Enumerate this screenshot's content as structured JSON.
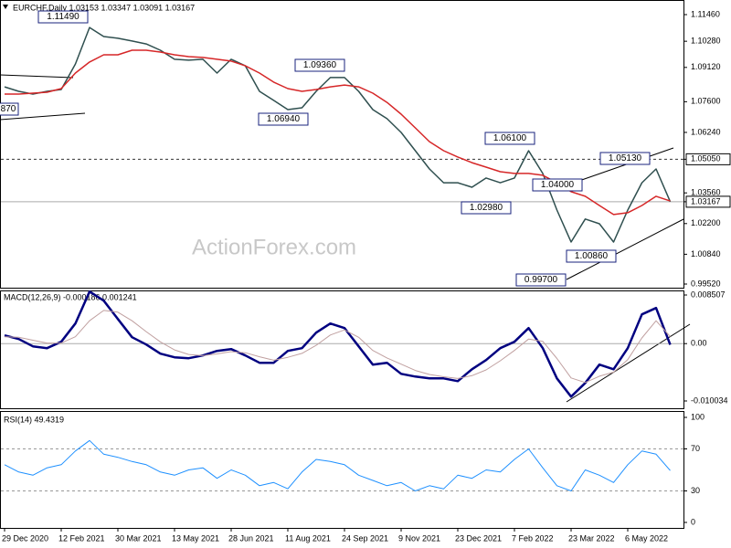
{
  "watermark": "ActionForex.com",
  "chart_data": [
    {
      "type": "line",
      "title": "EURCHF,Daily  1.03153 1.03347 1.03091 1.03167",
      "ylim": [
        0.9952,
        1.1146
      ],
      "yticks": [
        {
          "value": 1.1146,
          "label": "1.11460"
        },
        {
          "value": 1.1028,
          "label": "1.10280"
        },
        {
          "value": 1.0912,
          "label": "1.09120"
        },
        {
          "value": 1.076,
          "label": "1.07600"
        },
        {
          "value": 1.0624,
          "label": "1.06240"
        },
        {
          "value": 1.0505,
          "label": "1.05050",
          "line": "dashed",
          "boxed": true
        },
        {
          "value": 1.0356,
          "label": "1.03560"
        },
        {
          "value": 1.03167,
          "label": "1.03167",
          "line": "solid",
          "boxed": true
        },
        {
          "value": 1.022,
          "label": "1.02200"
        },
        {
          "value": 1.0084,
          "label": "1.00840"
        },
        {
          "value": 0.9952,
          "label": "0.99520"
        }
      ],
      "annotations": [
        "1.11490",
        "870",
        "1.09360",
        "1.06940",
        "1.06100",
        "1.05130",
        "1.04000",
        "1.02980",
        "1.00860",
        "0.99700"
      ],
      "series": [
        {
          "color": "#2f4f4f",
          "values": [
            1.0826,
            1.0806,
            1.0794,
            1.0806,
            1.0814,
            1.0927,
            1.1089,
            1.1049,
            1.1041,
            1.1029,
            1.1016,
            1.0988,
            1.0948,
            1.0944,
            1.0948,
            1.0887,
            1.0948,
            1.0919,
            1.0806,
            1.0766,
            1.0725,
            1.0733,
            1.0806,
            1.0867,
            1.0867,
            1.0806,
            1.0725,
            1.0685,
            1.0624,
            1.0543,
            1.0462,
            1.0401,
            1.0401,
            1.0381,
            1.0422,
            1.0401,
            1.0422,
            1.0543,
            1.0442,
            1.028,
            1.0138,
            1.024,
            1.0219,
            1.0138,
            1.028,
            1.0401,
            1.0462,
            1.0317
          ]
        },
        {
          "color": "#d62728",
          "values": [
            1.0794,
            1.0794,
            1.0798,
            1.0802,
            1.0818,
            1.0887,
            1.0936,
            1.0968,
            1.0968,
            1.0988,
            1.0988,
            1.098,
            1.0968,
            1.096,
            1.0956,
            1.0948,
            1.094,
            1.0919,
            1.0887,
            1.0847,
            1.0818,
            1.0806,
            1.0814,
            1.0826,
            1.0834,
            1.0826,
            1.0798,
            1.0757,
            1.0705,
            1.0644,
            1.0583,
            1.0543,
            1.0515,
            1.049,
            1.047,
            1.045,
            1.0442,
            1.0442,
            1.0434,
            1.0401,
            1.0361,
            1.0341,
            1.03,
            1.026,
            1.0268,
            1.03,
            1.0341,
            1.032
          ]
        }
      ]
    },
    {
      "type": "line",
      "title": "MACD(12,26,9) -0.000186 0.001241",
      "ylim": [
        -0.010034,
        0.008507
      ],
      "yticks": [
        0.008507,
        {
          "value": 0,
          "label": "0.00",
          "line": "solid"
        },
        -0.010034
      ],
      "series": [
        {
          "color": "#000080",
          "width": 2.5,
          "values": [
            0.00144,
            0.0008,
            -0.00048,
            -0.0008,
            0.00032,
            0.00352,
            0.00912,
            0.00752,
            0.0043,
            0.00112,
            -0.00016,
            -0.00176,
            -0.0024,
            -0.00256,
            -0.00208,
            -0.00128,
            -0.00096,
            -0.00208,
            -0.00336,
            -0.00336,
            -0.00128,
            -0.0008,
            0.00192,
            0.00352,
            0.00272,
            -0.00048,
            -0.00368,
            -0.00336,
            -0.00528,
            -0.00576,
            -0.00608,
            -0.00608,
            -0.00656,
            -0.00448,
            -0.00288,
            -0.0008,
            0.00032,
            0.00272,
            -0.0008,
            -0.00608,
            -0.00928,
            -0.00688,
            -0.00368,
            -0.00448,
            -0.0008,
            0.00512,
            0.00624,
            -0.000186
          ]
        },
        {
          "color": "#c0a0a0",
          "width": 1,
          "values": [
            0.0012,
            0.0011,
            0.0006,
            0.0001,
            0.0001,
            0.0012,
            0.004,
            0.0058,
            0.0055,
            0.004,
            0.0021,
            0.0003,
            -0.0011,
            -0.0019,
            -0.0021,
            -0.0018,
            -0.0014,
            -0.0016,
            -0.0023,
            -0.0029,
            -0.0024,
            -0.0017,
            -0.0003,
            0.0015,
            0.0024,
            0.0011,
            -0.0012,
            -0.0025,
            -0.0036,
            -0.0047,
            -0.0054,
            -0.0058,
            -0.0061,
            -0.0056,
            -0.0046,
            -0.003,
            -0.0012,
            0.0008,
            0.0004,
            -0.0026,
            -0.006,
            -0.0068,
            -0.0057,
            -0.005,
            -0.0028,
            0.001,
            0.004,
            0.001241
          ]
        }
      ]
    },
    {
      "type": "line",
      "title": "RSI(14) 49.4319",
      "ylim": [
        0,
        100
      ],
      "yticks": [
        100,
        70,
        30,
        0
      ],
      "grid": "dashed",
      "categories": [
        "29 Dec 2020",
        null,
        null,
        null,
        "12 Feb 2021",
        null,
        null,
        null,
        "30 Mar 2021",
        null,
        null,
        null,
        "13 May 2021",
        null,
        null,
        null,
        "28 Jun 2021",
        null,
        null,
        null,
        "11 Aug 2021",
        null,
        null,
        null,
        "24 Sep 2021",
        null,
        null,
        null,
        "9 Nov 2021",
        null,
        null,
        null,
        "23 Dec 2021",
        null,
        null,
        null,
        "7 Feb 2022",
        null,
        null,
        null,
        "23 Mar 2022",
        null,
        null,
        null,
        "6 May 2022",
        null,
        null,
        null
      ],
      "series": [
        {
          "color": "#1e90ff",
          "width": 1,
          "values": [
            55,
            48,
            45,
            52,
            55,
            68,
            78,
            65,
            62,
            58,
            55,
            48,
            45,
            50,
            52,
            42,
            50,
            45,
            35,
            38,
            32,
            48,
            60,
            58,
            55,
            45,
            40,
            35,
            38,
            30,
            35,
            32,
            45,
            42,
            50,
            48,
            60,
            70,
            52,
            35,
            30,
            50,
            45,
            38,
            55,
            68,
            65,
            49.4319
          ]
        }
      ]
    }
  ]
}
